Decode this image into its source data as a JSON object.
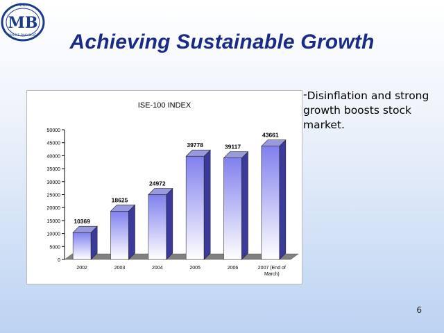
{
  "slide": {
    "title": "Achieving Sustainable Growth",
    "bullet_marker": "-",
    "bullet_text": "Disinflation and strong growth boosts stock market.",
    "page_number": "6"
  },
  "logo": {
    "top_text": "T.C.",
    "initials": "MB",
    "ring_text": "MALİYE BAKANLIĞI",
    "color": "#1a3a8a"
  },
  "chart_data": {
    "type": "bar",
    "title": "ISE-100 INDEX",
    "categories": [
      "2002",
      "2003",
      "2004",
      "2005",
      "2006",
      "2007 (End of March)"
    ],
    "category_lines": [
      [
        "2002"
      ],
      [
        "2003"
      ],
      [
        "2004"
      ],
      [
        "2005"
      ],
      [
        "2006"
      ],
      [
        "2007 (End of",
        "March)"
      ]
    ],
    "values": [
      10369,
      18625,
      24972,
      39778,
      39117,
      43661
    ],
    "data_labels": [
      "10369",
      "18625",
      "24972",
      "39778",
      "39117",
      "43661"
    ],
    "ylim": [
      0,
      50000
    ],
    "yticks": [
      "0",
      "5000",
      "10000",
      "15000",
      "20000",
      "25000",
      "30000",
      "35000",
      "40000",
      "45000",
      "50000"
    ],
    "xlabel": "",
    "ylabel": "",
    "grid": false,
    "legend": "none",
    "colors": {
      "bar_top": "#8080ee",
      "bar_bottom": "#ffffff",
      "bar_side": "#3a3a9a",
      "bar_cap": "#9999dd",
      "floor": "#808080"
    }
  }
}
